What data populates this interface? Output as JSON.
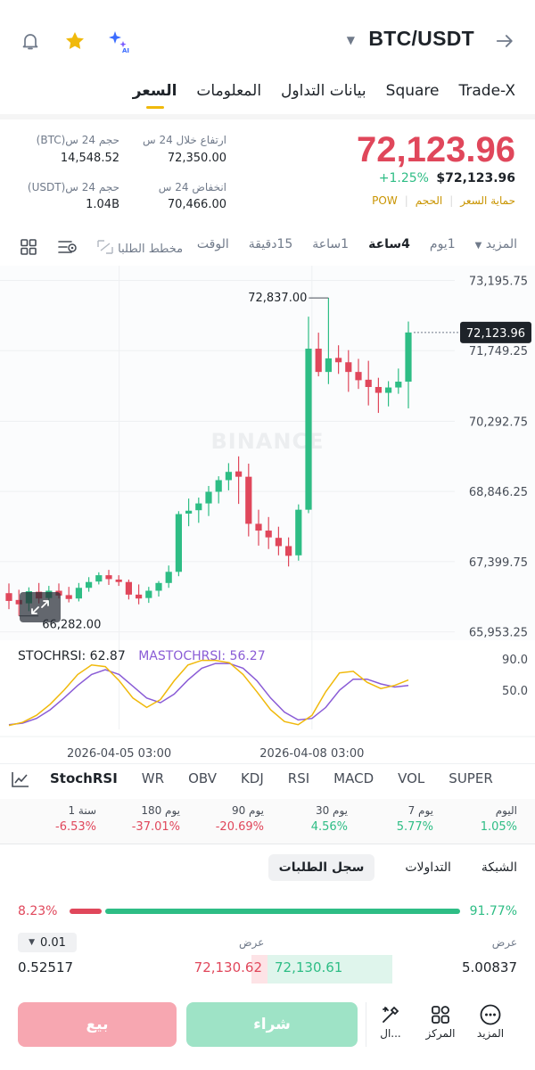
{
  "header": {
    "pair": "BTC/USDT",
    "icons": [
      "arrow-right-icon",
      "ai-sparkle-icon",
      "star-icon",
      "bell-icon"
    ]
  },
  "tabs": [
    {
      "label": "السعر",
      "active": true
    },
    {
      "label": "المعلومات"
    },
    {
      "label": "بيانات التداول"
    },
    {
      "label": "Square"
    },
    {
      "label": "Trade-X"
    }
  ],
  "price": {
    "last": "72,123.96",
    "change": "+1.25%",
    "usd": "$72,123.96",
    "tags": [
      "POW",
      "الحجم",
      "حماية السعر"
    ],
    "stats": {
      "high_label": "ارتفاع خلال 24 س",
      "high": "72,350.00",
      "low_label": "انخفاض 24 س",
      "low": "70,466.00",
      "vol_btc_label": "حجم 24 س(BTC)",
      "vol_btc": "14,548.52",
      "vol_usdt_label": "حجم 24 س(USDT)",
      "vol_usdt": "1.04B"
    }
  },
  "intervals": {
    "items": [
      "الوقت",
      "15دقيقة",
      "1ساعة",
      "4ساعة",
      "1يوم",
      "المزيد"
    ],
    "active": "4ساعة",
    "drawing": "مخطط الطلبا",
    "icons": [
      "depth-icon",
      "settings-icon",
      "grid-icon"
    ]
  },
  "chart_data": {
    "type": "candlestick",
    "y_ticks": [
      73195.75,
      71749.25,
      70292.75,
      68846.25,
      67399.75,
      65953.25
    ],
    "y_tick_labels": [
      "73,195.75",
      "71,749.25",
      "70,292.75",
      "68,846.25",
      "67,399.75",
      "65,953.25"
    ],
    "ylim": [
      65780,
      73500
    ],
    "current_price": "72,123.96",
    "current_price_value": 72123.96,
    "high_marker": "72,837.00",
    "high_marker_value": 72837,
    "low_marker": "66,282.00",
    "low_marker_value": 66282,
    "x_ticks": [
      "2026-04-05 03:00",
      "2026-04-08 03:00"
    ],
    "x_tick_index": [
      8,
      22
    ],
    "watermark": "BINANCE",
    "candles": [
      {
        "o": 66750,
        "h": 66950,
        "l": 66420,
        "c": 66590
      },
      {
        "o": 66610,
        "h": 66820,
        "l": 66282,
        "c": 66520
      },
      {
        "o": 66540,
        "h": 66870,
        "l": 66380,
        "c": 66790
      },
      {
        "o": 66780,
        "h": 66960,
        "l": 66540,
        "c": 66640
      },
      {
        "o": 66650,
        "h": 66900,
        "l": 66500,
        "c": 66800
      },
      {
        "o": 66800,
        "h": 66950,
        "l": 66640,
        "c": 66700
      },
      {
        "o": 66710,
        "h": 66880,
        "l": 66560,
        "c": 66630
      },
      {
        "o": 66640,
        "h": 66960,
        "l": 66580,
        "c": 66860
      },
      {
        "o": 66860,
        "h": 67080,
        "l": 66780,
        "c": 66980
      },
      {
        "o": 66990,
        "h": 67180,
        "l": 66930,
        "c": 67120
      },
      {
        "o": 67120,
        "h": 67230,
        "l": 66920,
        "c": 67040
      },
      {
        "o": 67030,
        "h": 67120,
        "l": 66900,
        "c": 66980
      },
      {
        "o": 66980,
        "h": 67030,
        "l": 66620,
        "c": 66720
      },
      {
        "o": 66720,
        "h": 66930,
        "l": 66520,
        "c": 66640
      },
      {
        "o": 66650,
        "h": 66880,
        "l": 66550,
        "c": 66800
      },
      {
        "o": 66800,
        "h": 67000,
        "l": 66680,
        "c": 66960
      },
      {
        "o": 66960,
        "h": 67320,
        "l": 66860,
        "c": 67190
      },
      {
        "o": 67190,
        "h": 68440,
        "l": 67100,
        "c": 68380
      },
      {
        "o": 68390,
        "h": 68700,
        "l": 68130,
        "c": 68450
      },
      {
        "o": 68460,
        "h": 68720,
        "l": 68200,
        "c": 68600
      },
      {
        "o": 68600,
        "h": 68960,
        "l": 68340,
        "c": 68840
      },
      {
        "o": 68840,
        "h": 69160,
        "l": 68600,
        "c": 69080
      },
      {
        "o": 69080,
        "h": 69430,
        "l": 68870,
        "c": 69250
      },
      {
        "o": 69260,
        "h": 69570,
        "l": 68590,
        "c": 69150
      },
      {
        "o": 69150,
        "h": 69420,
        "l": 67920,
        "c": 68180
      },
      {
        "o": 68180,
        "h": 68470,
        "l": 67730,
        "c": 68040
      },
      {
        "o": 68040,
        "h": 68320,
        "l": 67660,
        "c": 67900
      },
      {
        "o": 67890,
        "h": 68120,
        "l": 67530,
        "c": 67720
      },
      {
        "o": 67720,
        "h": 67900,
        "l": 67300,
        "c": 67520
      },
      {
        "o": 67530,
        "h": 68580,
        "l": 67420,
        "c": 68470
      },
      {
        "o": 68470,
        "h": 72450,
        "l": 68400,
        "c": 71790
      },
      {
        "o": 71790,
        "h": 72120,
        "l": 71220,
        "c": 71310
      },
      {
        "o": 71310,
        "h": 72837,
        "l": 71060,
        "c": 71590
      },
      {
        "o": 71600,
        "h": 71860,
        "l": 71270,
        "c": 71510
      },
      {
        "o": 71510,
        "h": 71760,
        "l": 70900,
        "c": 71310
      },
      {
        "o": 71310,
        "h": 71580,
        "l": 70960,
        "c": 71140
      },
      {
        "o": 71150,
        "h": 71540,
        "l": 70620,
        "c": 71000
      },
      {
        "o": 71000,
        "h": 71190,
        "l": 70466,
        "c": 70880
      },
      {
        "o": 70880,
        "h": 71120,
        "l": 70600,
        "c": 70990
      },
      {
        "o": 70990,
        "h": 71380,
        "l": 70860,
        "c": 71110
      },
      {
        "o": 71110,
        "h": 72350,
        "l": 70560,
        "c": 72124
      }
    ]
  },
  "stoch": {
    "label": "STOCHRSI: 62.87",
    "ma_label": "MASTOCHRSI: 56.27",
    "levels": [
      "90.0",
      "50.0"
    ],
    "k": [
      5,
      9,
      18,
      32,
      50,
      70,
      82,
      80,
      62,
      40,
      28,
      38,
      62,
      82,
      88,
      88,
      85,
      70,
      48,
      25,
      10,
      6,
      18,
      48,
      72,
      74,
      60,
      52,
      56,
      63
    ],
    "d": [
      6,
      8,
      14,
      25,
      40,
      56,
      70,
      76,
      70,
      55,
      40,
      34,
      45,
      63,
      78,
      84,
      84,
      78,
      62,
      40,
      22,
      12,
      14,
      28,
      50,
      64,
      64,
      58,
      54,
      56
    ]
  },
  "indicators": {
    "items": [
      "StochRSI",
      "WR",
      "OBV",
      "KDJ",
      "RSI",
      "MACD",
      "VOL",
      "SUPER"
    ],
    "active": "StochRSI"
  },
  "performance": [
    {
      "label": "اليوم",
      "value": "1.05%",
      "up": true
    },
    {
      "label": "7 يوم",
      "value": "5.77%",
      "up": true
    },
    {
      "label": "30 يوم",
      "value": "4.56%",
      "up": true
    },
    {
      "label": "90 يوم",
      "value": "-20.69%",
      "up": false
    },
    {
      "label": "180 يوم",
      "value": "-37.01%",
      "up": false
    },
    {
      "label": "1 سنة",
      "value": "-6.53%",
      "up": false
    }
  ],
  "orderbook": {
    "tabs": [
      "سجل الطلبات",
      "التداولات",
      "الشبكة"
    ],
    "active": "سجل الطلبات",
    "buy_pct": "91.77%",
    "sell_pct": "8.23%",
    "buy_ratio": 0.9177,
    "precision": "0.01",
    "bid_header": "عرض",
    "ask_header": "عرض",
    "row": {
      "bid_qty": "5.00837",
      "bid_price": "72,130.61",
      "ask_price": "72,130.62",
      "ask_qty": "0.52517"
    }
  },
  "bottom": {
    "sell": "بيع",
    "buy": "شراء",
    "actions": [
      {
        "label": "المزيد",
        "icon": "more-icon"
      },
      {
        "label": "المركز",
        "icon": "positions-icon"
      },
      {
        "label": "ال...",
        "icon": "tools-icon"
      }
    ]
  }
}
